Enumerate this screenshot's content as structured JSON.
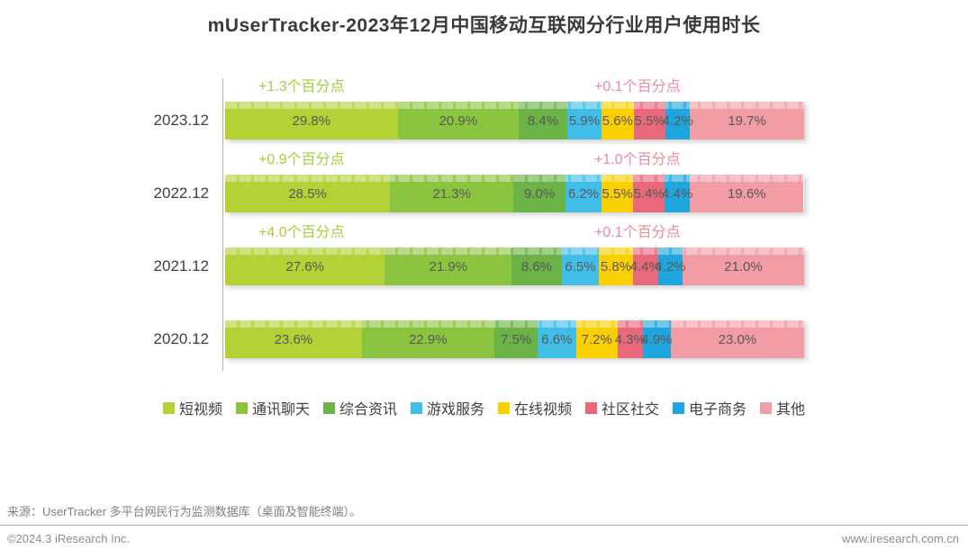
{
  "title": "mUserTracker-2023年12月中国移动互联网分行业用户使用时长",
  "chart_data": {
    "type": "bar",
    "orientation": "horizontal-stacked",
    "value_unit": "%",
    "axis_total": 100,
    "grid": false,
    "legend_position": "bottom",
    "categories": [
      "2023.12",
      "2022.12",
      "2021.12",
      "2020.12"
    ],
    "series": [
      {
        "name": "短视频",
        "color": "#b2d235",
        "values": [
          29.8,
          28.5,
          27.6,
          23.6
        ]
      },
      {
        "name": "通讯聊天",
        "color": "#8bc53f",
        "values": [
          20.9,
          21.3,
          21.9,
          22.9
        ]
      },
      {
        "name": "综合资讯",
        "color": "#6bb247",
        "values": [
          8.4,
          9.0,
          8.6,
          7.5
        ]
      },
      {
        "name": "游戏服务",
        "color": "#41bee8",
        "values": [
          5.9,
          6.2,
          6.5,
          6.6
        ]
      },
      {
        "name": "在线视频",
        "color": "#fbd001",
        "values": [
          5.6,
          5.5,
          5.8,
          7.2
        ]
      },
      {
        "name": "社区社交",
        "color": "#e9697c",
        "values": [
          5.5,
          5.4,
          4.4,
          4.3
        ]
      },
      {
        "name": "电子商务",
        "color": "#1fa6de",
        "values": [
          4.2,
          4.4,
          4.2,
          4.9
        ]
      },
      {
        "name": "其他",
        "color": "#f29ca6",
        "values": [
          19.7,
          19.6,
          21.0,
          23.0
        ]
      }
    ],
    "annotations": [
      {
        "left": "+1.3个百分点",
        "right": "+0.1个百分点"
      },
      {
        "left": "+0.9个百分点",
        "right": "+1.0个百分点"
      },
      {
        "left": "+4.0个百分点",
        "right": "+0.1个百分点"
      },
      null
    ],
    "annotation_colors": {
      "left": "#a5cf3b",
      "right": "#f08a9b"
    }
  },
  "footer": {
    "source": "来源：UserTracker 多平台网民行为监测数据库（桌面及智能终端）。",
    "copyright": "©2024.3 iResearch Inc.",
    "website": "www.iresearch.com.cn"
  }
}
